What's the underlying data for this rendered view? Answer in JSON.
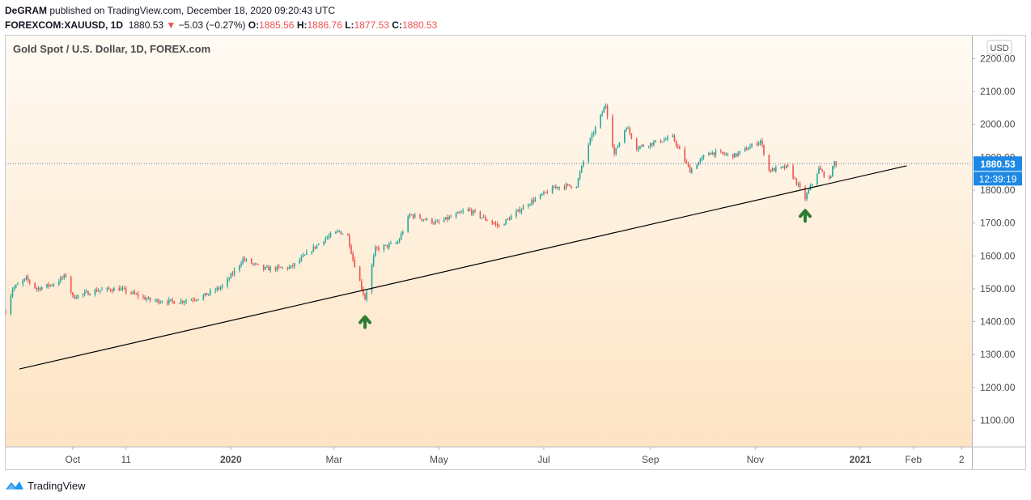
{
  "header": {
    "publisher_name": "DeGRAM",
    "published_text": "published on TradingView.com, December 18, 2020 09:20:43 UTC",
    "symbol": "FOREXCOM:XAUUSD, 1D",
    "last": "1880.53",
    "change_arrow": "▼",
    "change": "−5.03 (−0.27%)",
    "open_label": "O:",
    "open": "1885.56",
    "high_label": "H:",
    "high": "1886.76",
    "low_label": "L:",
    "low": "1877.53",
    "close_label": "C:",
    "close": "1880.53"
  },
  "chart_title": "Gold Spot / U.S. Dollar, 1D, FOREX.com",
  "footer": {
    "brand": "TradingView",
    "logo_icon": "tradingview-logo-icon"
  },
  "colors": {
    "up": "#26a69a",
    "down": "#ef5350",
    "trendline": "#000000",
    "arrow": "#2e7d32",
    "price_badge": "#1e88e5",
    "bg_top": "#fffaf3",
    "bg_bottom": "#fde4c3"
  },
  "chart_data": {
    "type": "candlestick",
    "currency": "USD",
    "y_range": [
      1020,
      2270
    ],
    "y_ticks": [
      "2200.00",
      "2100.00",
      "2000.00",
      "1900.00",
      "1800.00",
      "1700.00",
      "1600.00",
      "1500.00",
      "1400.00",
      "1300.00",
      "1200.00",
      "1100.00"
    ],
    "y_tick_values": [
      2200,
      2100,
      2000,
      1900,
      1800,
      1700,
      1600,
      1500,
      1400,
      1300,
      1200,
      1100
    ],
    "x_range": [
      "2019-08-23",
      "2021-03-07"
    ],
    "x_ticks": [
      {
        "label": "Oct",
        "date": "2019-10-01"
      },
      {
        "label": "11",
        "date": "2019-11-01"
      },
      {
        "label": "2020",
        "date": "2020-01-01",
        "bold": true
      },
      {
        "label": "Mar",
        "date": "2020-03-01"
      },
      {
        "label": "May",
        "date": "2020-05-01"
      },
      {
        "label": "Jul",
        "date": "2020-07-01"
      },
      {
        "label": "Sep",
        "date": "2020-09-01"
      },
      {
        "label": "Nov",
        "date": "2020-11-01"
      },
      {
        "label": "2021",
        "date": "2021-01-01",
        "bold": true
      },
      {
        "label": "Feb",
        "date": "2021-02-01"
      },
      {
        "label": "2",
        "date": "2021-03-01"
      }
    ],
    "close_path": [
      [
        "2019-08-23",
        1430
      ],
      [
        "2019-08-27",
        1500
      ],
      [
        "2019-09-04",
        1530
      ],
      [
        "2019-09-10",
        1500
      ],
      [
        "2019-09-20",
        1515
      ],
      [
        "2019-09-27",
        1540
      ],
      [
        "2019-10-01",
        1475
      ],
      [
        "2019-10-15",
        1495
      ],
      [
        "2019-10-28",
        1500
      ],
      [
        "2019-11-05",
        1485
      ],
      [
        "2019-11-15",
        1465
      ],
      [
        "2019-12-01",
        1460
      ],
      [
        "2019-12-15",
        1475
      ],
      [
        "2019-12-28",
        1510
      ],
      [
        "2020-01-08",
        1590
      ],
      [
        "2020-01-20",
        1560
      ],
      [
        "2020-02-05",
        1565
      ],
      [
        "2020-02-24",
        1650
      ],
      [
        "2020-03-04",
        1675
      ],
      [
        "2020-03-09",
        1660
      ],
      [
        "2020-03-12",
        1590
      ],
      [
        "2020-03-19",
        1470
      ],
      [
        "2020-03-25",
        1620
      ],
      [
        "2020-04-07",
        1640
      ],
      [
        "2020-04-14",
        1725
      ],
      [
        "2020-04-30",
        1700
      ],
      [
        "2020-05-18",
        1740
      ],
      [
        "2020-06-05",
        1690
      ],
      [
        "2020-06-22",
        1760
      ],
      [
        "2020-07-08",
        1810
      ],
      [
        "2020-07-20",
        1815
      ],
      [
        "2020-07-27",
        1940
      ],
      [
        "2020-08-06",
        2060
      ],
      [
        "2020-08-11",
        1910
      ],
      [
        "2020-08-18",
        1995
      ],
      [
        "2020-08-24",
        1930
      ],
      [
        "2020-09-14",
        1960
      ],
      [
        "2020-09-24",
        1860
      ],
      [
        "2020-10-05",
        1915
      ],
      [
        "2020-10-20",
        1905
      ],
      [
        "2020-11-04",
        1950
      ],
      [
        "2020-11-09",
        1860
      ],
      [
        "2020-11-20",
        1870
      ],
      [
        "2020-11-30",
        1775
      ],
      [
        "2020-12-08",
        1865
      ],
      [
        "2020-12-14",
        1830
      ],
      [
        "2020-12-17",
        1885
      ],
      [
        "2020-12-18",
        1880.53
      ]
    ],
    "trendline": {
      "start": [
        "2019-08-31",
        1256
      ],
      "end": [
        "2021-01-28",
        1874
      ]
    },
    "last_price": {
      "value": 1880.53,
      "label": "1880.53",
      "countdown": "12:39:19"
    },
    "annotations": [
      {
        "type": "arrow-up",
        "date": "2020-03-19",
        "price": 1400
      },
      {
        "type": "arrow-up",
        "date": "2020-11-30",
        "price": 1723
      }
    ]
  }
}
